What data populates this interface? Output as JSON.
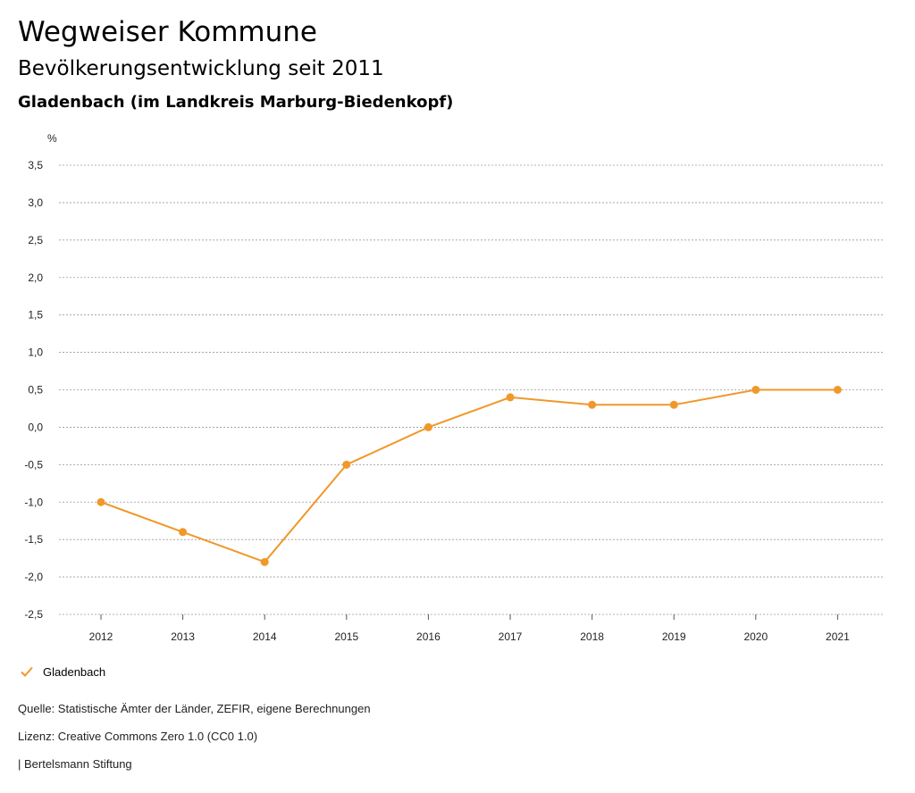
{
  "header": {
    "title": "Wegweiser Kommune",
    "subtitle": "Bevölkerungsentwicklung seit 2011",
    "region": "Gladenbach (im Landkreis Marburg-Biedenkopf)"
  },
  "chart_data": {
    "type": "line",
    "ylabel": "%",
    "xlabel": "",
    "ylim": [
      -2.5,
      3.5
    ],
    "yticks": [
      3.5,
      3.0,
      2.5,
      2.0,
      1.5,
      1.0,
      0.5,
      0.0,
      -0.5,
      -1.0,
      -1.5,
      -2.0,
      -2.5
    ],
    "ytick_labels": [
      "3,5",
      "3,0",
      "2,5",
      "2,0",
      "1,5",
      "1,0",
      "0,5",
      "0,0",
      "-0,5",
      "-1,0",
      "-1,5",
      "-2,0",
      "-2,5"
    ],
    "categories": [
      "2012",
      "2013",
      "2014",
      "2015",
      "2016",
      "2017",
      "2018",
      "2019",
      "2020",
      "2021"
    ],
    "series": [
      {
        "name": "Gladenbach",
        "color": "#f0982b",
        "values": [
          -1.0,
          -1.4,
          -1.8,
          -0.5,
          0.0,
          0.4,
          0.3,
          0.3,
          0.5,
          0.5
        ]
      }
    ],
    "grid": true,
    "legend_position": "bottom-left"
  },
  "legend": {
    "label": "Gladenbach",
    "icon": "check-icon"
  },
  "footer": {
    "source": "Quelle: Statistische Ämter der Länder, ZEFIR, eigene Berechnungen",
    "license": "Lizenz: Creative Commons Zero 1.0 (CC0 1.0)",
    "publisher": "| Bertelsmann Stiftung"
  }
}
